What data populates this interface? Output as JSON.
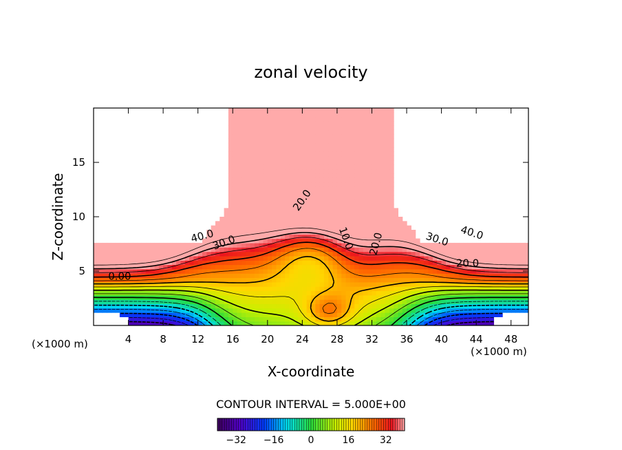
{
  "chart_data": {
    "type": "contour",
    "title": "zonal velocity",
    "xlabel": "X-coordinate",
    "ylabel": "Z-coordinate",
    "x_unit_label": "(×1000 m)",
    "xlim": [
      0,
      50
    ],
    "ylim": [
      0,
      20
    ],
    "x_ticks": [
      4,
      8,
      12,
      16,
      20,
      24,
      28,
      32,
      36,
      40,
      44,
      48
    ],
    "y_ticks": [
      5,
      10,
      15
    ],
    "contour_interval_label": "CONTOUR INTERVAL = 5.000E+00",
    "contour_interval": 5,
    "contour_labels": [
      {
        "text": "40.0",
        "x": 12.5,
        "z": 8.2,
        "angle": -15
      },
      {
        "text": "30.0",
        "x": 15.0,
        "z": 7.6,
        "angle": -20
      },
      {
        "text": "0.00",
        "x": 3.0,
        "z": 4.5,
        "angle": 0
      },
      {
        "text": "20.0",
        "x": 24.0,
        "z": 11.5,
        "angle": -55
      },
      {
        "text": "10.0",
        "x": 29.0,
        "z": 8.0,
        "angle": 70
      },
      {
        "text": "20.0",
        "x": 32.5,
        "z": 7.5,
        "angle": -75
      },
      {
        "text": "30.0",
        "x": 39.5,
        "z": 7.9,
        "angle": 18
      },
      {
        "text": "40.0",
        "x": 43.5,
        "z": 8.5,
        "angle": 18
      },
      {
        "text": "20.0",
        "x": 43.0,
        "z": 5.7,
        "angle": 0
      }
    ],
    "colorbar": {
      "min": -40,
      "max": 40,
      "ticks": [
        -32,
        -16,
        0,
        16,
        32
      ],
      "tick_labels": [
        "−32",
        "−16",
        "0",
        "16",
        "32"
      ]
    }
  }
}
